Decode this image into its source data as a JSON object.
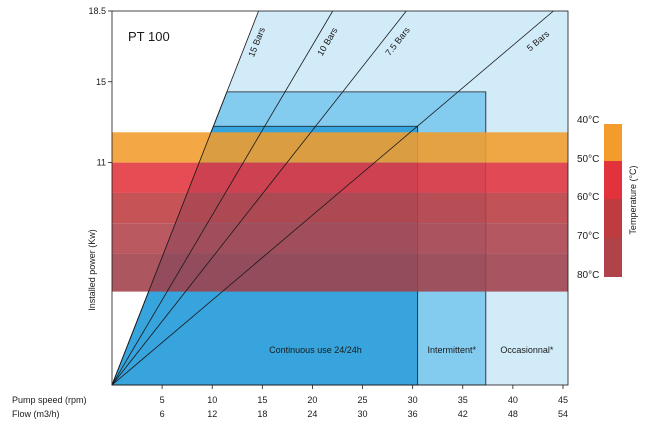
{
  "chart_data": {
    "type": "area",
    "title": "PT 100",
    "ylabel": "Installed power (Kw)",
    "ylim": [
      0,
      18.5
    ],
    "y_ticks": [
      {
        "value": 18.5,
        "label": "18.5"
      },
      {
        "value": 15,
        "label": "15"
      },
      {
        "value": 11,
        "label": "11"
      }
    ],
    "x_axes": [
      {
        "label": "Pump speed (rpm)",
        "ticks": [
          5,
          10,
          15,
          20,
          25,
          30,
          35,
          40,
          45
        ]
      },
      {
        "label": "Flow (m3/h)",
        "ticks": [
          6,
          12,
          18,
          24,
          30,
          36,
          42,
          48,
          54
        ]
      }
    ],
    "xlim": [
      0,
      45.5
    ],
    "pressure_lines": [
      {
        "name": "15 Bars",
        "kw_per_rpm": 1.265
      },
      {
        "name": "10 Bars",
        "kw_per_rpm": 0.84
      },
      {
        "name": "7.5 Bars",
        "kw_per_rpm": 0.63
      },
      {
        "name": "5 Bars",
        "kw_per_rpm": 0.42
      }
    ],
    "usage_zones": [
      {
        "name": "Continuous use 24/24h",
        "max_speed": 30.5,
        "max_power": 12.8,
        "color": "#37a4dd"
      },
      {
        "name": "Intermittent*",
        "max_speed": 37.3,
        "max_power": 14.5,
        "color": "#83cbef"
      },
      {
        "name": "Occasionnal*",
        "max_speed": 45.5,
        "max_power": 18.5,
        "color": "#d2ebf8"
      }
    ],
    "temperature_scale": {
      "label": "Temperature (°C)",
      "bands": [
        {
          "label": "40°C",
          "power_from": 11,
          "power_to": 12.5,
          "color": "#f39c2b"
        },
        {
          "label": "50°C",
          "power_from": 9.5,
          "power_to": 11,
          "color": "#e2333c"
        },
        {
          "label": "60°C",
          "power_from": 8,
          "power_to": 9.5,
          "color": "#be3c40"
        },
        {
          "label": "70°C",
          "power_from": 6.5,
          "power_to": 8,
          "color": "#b0424a"
        },
        {
          "label": "80°C",
          "power_from": 6.5,
          "power_to": 6.5,
          "color": "#a1404a"
        }
      ]
    }
  }
}
